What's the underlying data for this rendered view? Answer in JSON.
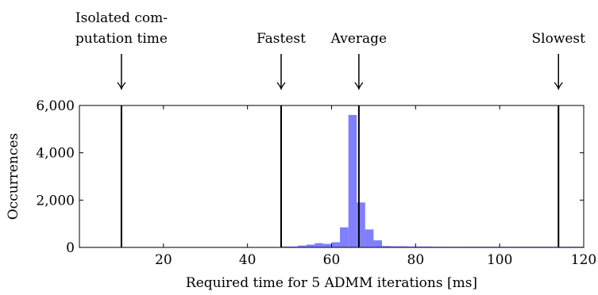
{
  "chart_data": {
    "type": "bar",
    "xlabel": "Required time for 5 ADMM iterations [ms]",
    "ylabel": "Occurrences",
    "xlim": [
      0,
      120
    ],
    "ylim": [
      0,
      6000
    ],
    "x_ticks": [
      20,
      40,
      60,
      80,
      100,
      120
    ],
    "x_tick_labels": [
      "20",
      "40",
      "60",
      "80",
      "100",
      "120"
    ],
    "y_ticks": [
      0,
      2000,
      4000,
      6000
    ],
    "y_tick_labels": [
      "0",
      "2,000",
      "4,000",
      "6,000"
    ],
    "bin_width": 2,
    "bins": [
      {
        "x0": 0,
        "count": 20
      },
      {
        "x0": 2,
        "count": 20
      },
      {
        "x0": 4,
        "count": 20
      },
      {
        "x0": 6,
        "count": 20
      },
      {
        "x0": 8,
        "count": 20
      },
      {
        "x0": 10,
        "count": 20
      },
      {
        "x0": 12,
        "count": 20
      },
      {
        "x0": 14,
        "count": 20
      },
      {
        "x0": 16,
        "count": 20
      },
      {
        "x0": 18,
        "count": 20
      },
      {
        "x0": 20,
        "count": 20
      },
      {
        "x0": 22,
        "count": 20
      },
      {
        "x0": 24,
        "count": 20
      },
      {
        "x0": 26,
        "count": 20
      },
      {
        "x0": 28,
        "count": 20
      },
      {
        "x0": 30,
        "count": 20
      },
      {
        "x0": 32,
        "count": 20
      },
      {
        "x0": 34,
        "count": 20
      },
      {
        "x0": 36,
        "count": 20
      },
      {
        "x0": 38,
        "count": 20
      },
      {
        "x0": 40,
        "count": 20
      },
      {
        "x0": 42,
        "count": 20
      },
      {
        "x0": 44,
        "count": 20
      },
      {
        "x0": 46,
        "count": 20
      },
      {
        "x0": 48,
        "count": 40
      },
      {
        "x0": 50,
        "count": 40
      },
      {
        "x0": 52,
        "count": 80
      },
      {
        "x0": 54,
        "count": 120
      },
      {
        "x0": 56,
        "count": 180
      },
      {
        "x0": 58,
        "count": 150
      },
      {
        "x0": 60,
        "count": 220
      },
      {
        "x0": 62,
        "count": 850
      },
      {
        "x0": 64,
        "count": 5600
      },
      {
        "x0": 66,
        "count": 1900
      },
      {
        "x0": 68,
        "count": 760
      },
      {
        "x0": 70,
        "count": 300
      },
      {
        "x0": 72,
        "count": 60
      },
      {
        "x0": 74,
        "count": 50
      },
      {
        "x0": 76,
        "count": 50
      },
      {
        "x0": 78,
        "count": 40
      },
      {
        "x0": 80,
        "count": 40
      },
      {
        "x0": 82,
        "count": 40
      },
      {
        "x0": 84,
        "count": 30
      },
      {
        "x0": 86,
        "count": 30
      },
      {
        "x0": 88,
        "count": 30
      },
      {
        "x0": 90,
        "count": 30
      },
      {
        "x0": 92,
        "count": 30
      },
      {
        "x0": 94,
        "count": 30
      },
      {
        "x0": 96,
        "count": 30
      },
      {
        "x0": 98,
        "count": 30
      },
      {
        "x0": 100,
        "count": 30
      },
      {
        "x0": 102,
        "count": 30
      },
      {
        "x0": 104,
        "count": 30
      },
      {
        "x0": 106,
        "count": 30
      },
      {
        "x0": 108,
        "count": 30
      },
      {
        "x0": 110,
        "count": 30
      },
      {
        "x0": 112,
        "count": 30
      },
      {
        "x0": 114,
        "count": 30
      },
      {
        "x0": 116,
        "count": 30
      },
      {
        "x0": 118,
        "count": 30
      }
    ],
    "bar_color": "#7f7fff",
    "markers": [
      {
        "x": 10,
        "label_lines": [
          "Isolated com-",
          "putation time"
        ]
      },
      {
        "x": 48,
        "label_lines": [
          "Fastest"
        ]
      },
      {
        "x": 66.5,
        "label_lines": [
          "Average"
        ]
      },
      {
        "x": 114,
        "label_lines": [
          "Slowest"
        ]
      }
    ]
  }
}
